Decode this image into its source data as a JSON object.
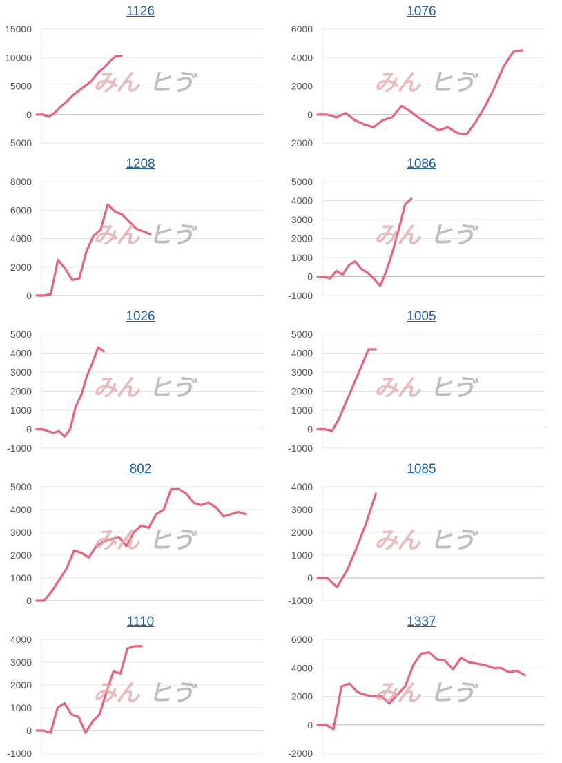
{
  "line_color": "#f0607a",
  "title_color": "#1a5fb4",
  "watermark": {
    "text_a": "みん",
    "text_b": "ヒ",
    "suffix": "ゔ"
  },
  "chart_data": [
    {
      "type": "line",
      "title": "1126",
      "yticks": [
        -5000,
        0,
        5000,
        10000,
        15000
      ],
      "ylim": [
        -5000,
        15000
      ],
      "grid": true,
      "values": [
        0,
        0,
        -400,
        300,
        1400,
        2300,
        3400,
        4200,
        5000,
        5800,
        7200,
        8100,
        9200,
        10200,
        10300
      ]
    },
    {
      "type": "line",
      "title": "1076",
      "yticks": [
        -2000,
        0,
        2000,
        4000,
        6000
      ],
      "ylim": [
        -2000,
        6000
      ],
      "grid": true,
      "values": [
        0,
        0,
        -200,
        100,
        -400,
        -700,
        -900,
        -400,
        -200,
        600,
        200,
        -300,
        -700,
        -1100,
        -900,
        -1300,
        -1400,
        -500,
        600,
        1900,
        3400,
        4400,
        4500
      ]
    },
    {
      "type": "line",
      "title": "1208",
      "yticks": [
        0,
        2000,
        4000,
        6000,
        8000
      ],
      "ylim": [
        0,
        8000
      ],
      "grid": true,
      "values": [
        0,
        0,
        100,
        2500,
        1900,
        1100,
        1200,
        3100,
        4200,
        4600,
        6400,
        5900,
        5700,
        5200,
        4700,
        4500,
        4300
      ]
    },
    {
      "type": "line",
      "title": "1086",
      "yticks": [
        -1000,
        0,
        1000,
        2000,
        3000,
        4000,
        5000
      ],
      "ylim": [
        -1000,
        5000
      ],
      "grid": true,
      "values": [
        0,
        0,
        -100,
        300,
        100,
        600,
        800,
        400,
        200,
        -100,
        -500,
        300,
        1300,
        2500,
        3800,
        4100
      ]
    },
    {
      "type": "line",
      "title": "1026",
      "yticks": [
        -1000,
        0,
        1000,
        2000,
        3000,
        4000,
        5000
      ],
      "ylim": [
        -1000,
        5000
      ],
      "grid": true,
      "values": [
        0,
        0,
        -100,
        -200,
        -100,
        -400,
        0,
        1200,
        1800,
        2800,
        3500,
        4300,
        4100
      ]
    },
    {
      "type": "line",
      "title": "1005",
      "yticks": [
        -1000,
        0,
        1000,
        2000,
        3000,
        4000,
        5000
      ],
      "ylim": [
        -1000,
        5000
      ],
      "grid": true,
      "values": [
        0,
        0,
        -100,
        600,
        1500,
        2400,
        3300,
        4200,
        4200
      ]
    },
    {
      "type": "line",
      "title": "802",
      "yticks": [
        0,
        1000,
        2000,
        3000,
        4000,
        5000
      ],
      "ylim": [
        0,
        5000
      ],
      "grid": true,
      "values": [
        0,
        0,
        400,
        900,
        1400,
        2200,
        2100,
        1900,
        2400,
        2600,
        2700,
        2800,
        2400,
        3000,
        3300,
        3200,
        3800,
        4000,
        4900,
        4900,
        4700,
        4300,
        4200,
        4300,
        4100,
        3700,
        3800,
        3900,
        3800
      ]
    },
    {
      "type": "line",
      "title": "1085",
      "yticks": [
        -1000,
        0,
        1000,
        2000,
        3000,
        4000
      ],
      "ylim": [
        -1000,
        4000
      ],
      "grid": true,
      "values": [
        0,
        0,
        -400,
        300,
        1300,
        2400,
        3700
      ]
    },
    {
      "type": "line",
      "title": "1110",
      "yticks": [
        -1000,
        0,
        1000,
        2000,
        3000,
        4000
      ],
      "ylim": [
        -1000,
        4000
      ],
      "grid": true,
      "values": [
        0,
        0,
        -100,
        1000,
        1200,
        700,
        600,
        -100,
        400,
        700,
        1700,
        2600,
        2500,
        3600,
        3700,
        3700
      ]
    },
    {
      "type": "line",
      "title": "1337",
      "yticks": [
        -2000,
        0,
        2000,
        4000,
        6000
      ],
      "ylim": [
        -2000,
        6000
      ],
      "grid": true,
      "values": [
        0,
        0,
        -300,
        2700,
        2900,
        2300,
        2100,
        2000,
        2000,
        1500,
        2100,
        2700,
        4200,
        5000,
        5100,
        4600,
        4500,
        3900,
        4700,
        4400,
        4300,
        4200,
        4000,
        4000,
        3700,
        3800,
        3500
      ]
    }
  ]
}
